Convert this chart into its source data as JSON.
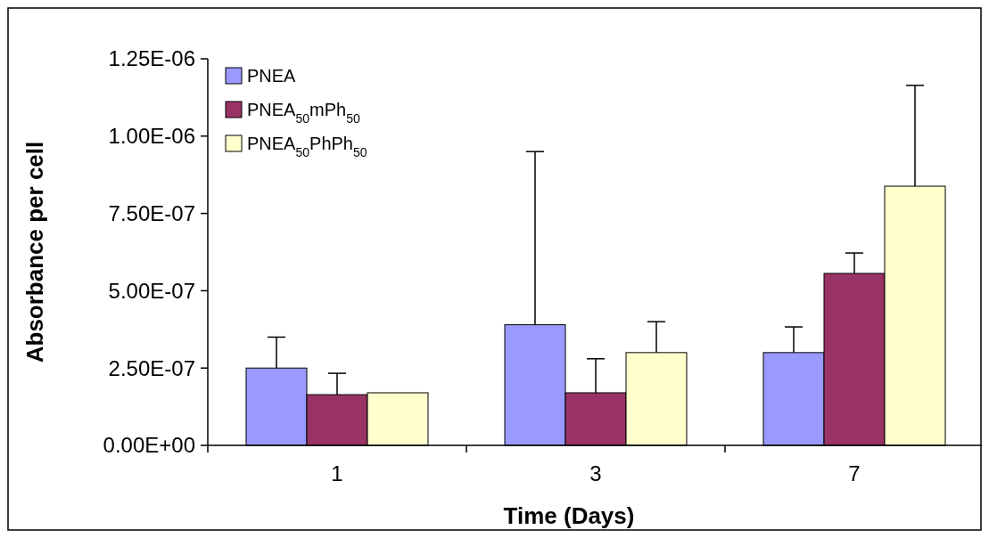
{
  "chart_data": {
    "type": "bar",
    "xlabel": "Time (Days)",
    "ylabel": "Absorbance per cell",
    "categories": [
      "1",
      "3",
      "7"
    ],
    "series": [
      {
        "name": "PNEA",
        "color": "#9999ff",
        "values": [
          2.5e-07,
          3.9e-07,
          3e-07
        ],
        "errors": [
          [
            2.5e-07,
            3.5e-07
          ],
          [
            3.9e-07,
            9.5e-07
          ],
          [
            3e-07,
            3.83e-07
          ]
        ]
      },
      {
        "name": "PNEA$_{50}$mPh$_{50}$",
        "color": "#993366",
        "values": [
          1.64e-07,
          1.7e-07,
          5.56e-07
        ],
        "errors": [
          [
            1.64e-07,
            2.33e-07
          ],
          [
            1.7e-07,
            2.8e-07
          ],
          [
            5.56e-07,
            6.22e-07
          ]
        ]
      },
      {
        "name": "PNEA$_{50}$PhPh$_{50}$",
        "color": "#ffffcc",
        "values": [
          1.7e-07,
          3e-07,
          8.38e-07
        ],
        "errors": [
          null,
          [
            3e-07,
            4e-07
          ],
          [
            8.38e-07,
            1.164e-06
          ]
        ]
      }
    ],
    "ylim": [
      0,
      1.25e-06
    ],
    "yticks": [
      {
        "value": 0,
        "label": "0.00E+00"
      },
      {
        "value": 2.5e-07,
        "label": "2.50E-07"
      },
      {
        "value": 5e-07,
        "label": "5.00E-07"
      },
      {
        "value": 7.5e-07,
        "label": "7.50E-07"
      },
      {
        "value": 1e-06,
        "label": "1.00E-06"
      },
      {
        "value": 1.25e-06,
        "label": "1.25E-06"
      }
    ],
    "grid": false,
    "legend": "top left"
  }
}
